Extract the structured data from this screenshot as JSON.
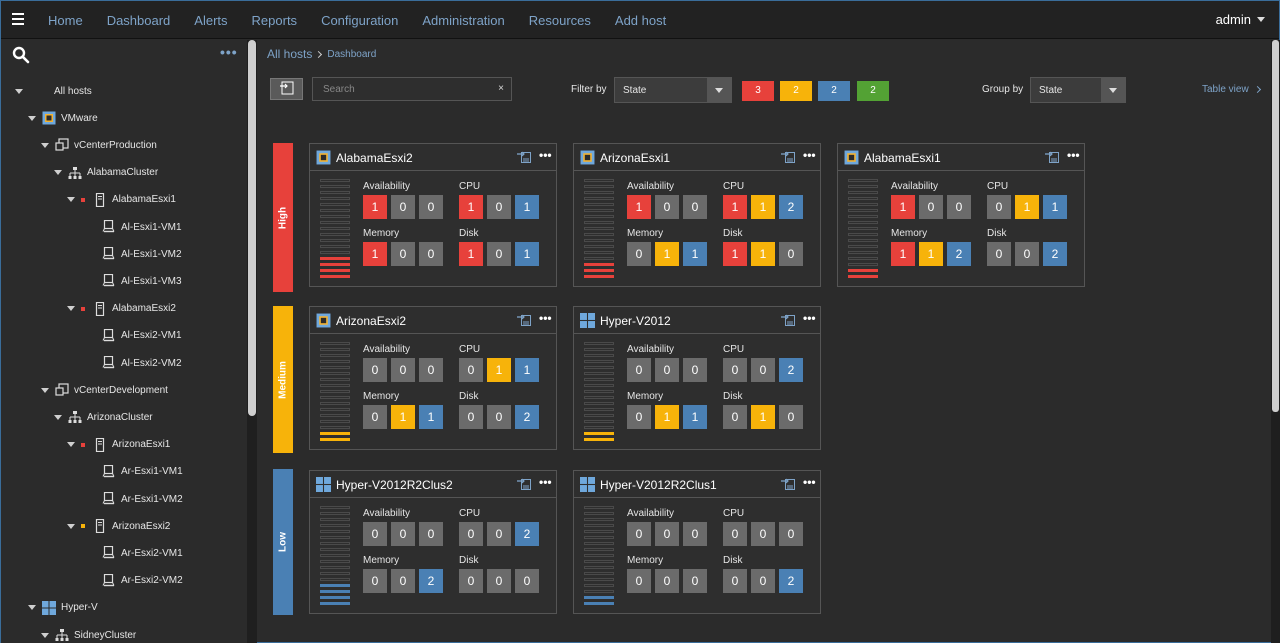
{
  "colors": {
    "red": "#e7413b",
    "amber": "#f7b30a",
    "blue": "#4a80b4",
    "green": "#53a234",
    "gray": "#6b6b6b"
  },
  "nav": {
    "items": [
      "Home",
      "Dashboard",
      "Alerts",
      "Reports",
      "Configuration",
      "Administration",
      "Resources",
      "Add host"
    ],
    "user": "admin"
  },
  "sidebar": {
    "more": "•••",
    "tree": [
      {
        "label": "All hosts",
        "level": 0,
        "icon": "none",
        "expanded": true
      },
      {
        "label": "VMware",
        "level": 1,
        "icon": "vmware-icon",
        "expanded": true
      },
      {
        "label": "vCenterProduction",
        "level": 2,
        "icon": "vcenter-icon",
        "expanded": true
      },
      {
        "label": "AlabamaCluster",
        "level": 3,
        "icon": "cluster-icon",
        "expanded": true
      },
      {
        "label": "AlabamaEsxi1",
        "level": 4,
        "icon": "server-icon",
        "expanded": true,
        "status": "red"
      },
      {
        "label": "Al-Esxi1-VM1",
        "level": 5,
        "icon": "vm-icon"
      },
      {
        "label": "Al-Esxi1-VM2",
        "level": 5,
        "icon": "vm-icon"
      },
      {
        "label": "Al-Esxi1-VM3",
        "level": 5,
        "icon": "vm-icon"
      },
      {
        "label": "AlabamaEsxi2",
        "level": 4,
        "icon": "server-icon",
        "expanded": true,
        "status": "red"
      },
      {
        "label": "Al-Esxi2-VM1",
        "level": 5,
        "icon": "vm-icon"
      },
      {
        "label": "Al-Esxi2-VM2",
        "level": 5,
        "icon": "vm-icon"
      },
      {
        "label": "vCenterDevelopment",
        "level": 2,
        "icon": "vcenter-icon",
        "expanded": true
      },
      {
        "label": "ArizonaCluster",
        "level": 3,
        "icon": "cluster-icon",
        "expanded": true
      },
      {
        "label": "ArizonaEsxi1",
        "level": 4,
        "icon": "server-icon",
        "expanded": true,
        "status": "red"
      },
      {
        "label": "Ar-Esxi1-VM1",
        "level": 5,
        "icon": "vm-icon"
      },
      {
        "label": "Ar-Esxi1-VM2",
        "level": 5,
        "icon": "vm-icon"
      },
      {
        "label": "ArizonaEsxi2",
        "level": 4,
        "icon": "server-icon",
        "expanded": true,
        "status": "amber"
      },
      {
        "label": "Ar-Esxi2-VM1",
        "level": 5,
        "icon": "vm-icon"
      },
      {
        "label": "Ar-Esxi2-VM2",
        "level": 5,
        "icon": "vm-icon"
      },
      {
        "label": "Hyper-V",
        "level": 1,
        "icon": "windows-icon",
        "expanded": true
      },
      {
        "label": "SidneyCluster",
        "level": 2,
        "icon": "cluster-icon",
        "expanded": true
      }
    ]
  },
  "breadcrumb": {
    "root": "All hosts",
    "current": "Dashboard"
  },
  "toolbar": {
    "search_placeholder": "Search",
    "clear": "×",
    "filter_label": "Filter by",
    "filter_value": "State",
    "filter_counts": [
      {
        "count": "3",
        "color": "red"
      },
      {
        "count": "2",
        "color": "amber"
      },
      {
        "count": "2",
        "color": "blue"
      },
      {
        "count": "2",
        "color": "green"
      }
    ],
    "group_label": "Group by",
    "group_value": "State",
    "table_view": "Table view"
  },
  "metric_labels": [
    "Availability",
    "CPU",
    "Memory",
    "Disk"
  ],
  "card_more": "•••",
  "groups": [
    {
      "label": "High",
      "color": "red",
      "cards": [
        {
          "name": "AlabamaEsxi2",
          "icon": "vmware-icon",
          "level": 4,
          "metrics": {
            "Availability": [
              "1",
              "0",
              "0"
            ],
            "CPU": [
              "1",
              "0",
              "1"
            ],
            "Memory": [
              "1",
              "0",
              "0"
            ],
            "Disk": [
              "1",
              "0",
              "1"
            ]
          },
          "colors": {
            "Availability": [
              "red",
              "gray",
              "gray"
            ],
            "CPU": [
              "red",
              "gray",
              "blue"
            ],
            "Memory": [
              "red",
              "gray",
              "gray"
            ],
            "Disk": [
              "red",
              "gray",
              "blue"
            ]
          }
        },
        {
          "name": "ArizonaEsxi1",
          "icon": "vmware-icon",
          "level": 3,
          "metrics": {
            "Availability": [
              "1",
              "0",
              "0"
            ],
            "CPU": [
              "1",
              "1",
              "2"
            ],
            "Memory": [
              "0",
              "1",
              "1"
            ],
            "Disk": [
              "1",
              "1",
              "0"
            ]
          },
          "colors": {
            "Availability": [
              "red",
              "gray",
              "gray"
            ],
            "CPU": [
              "red",
              "amber",
              "blue"
            ],
            "Memory": [
              "gray",
              "amber",
              "blue"
            ],
            "Disk": [
              "red",
              "amber",
              "gray"
            ]
          }
        },
        {
          "name": "AlabamaEsxi1",
          "icon": "vmware-icon",
          "level": 2,
          "metrics": {
            "Availability": [
              "1",
              "0",
              "0"
            ],
            "CPU": [
              "0",
              "1",
              "1"
            ],
            "Memory": [
              "1",
              "1",
              "2"
            ],
            "Disk": [
              "0",
              "0",
              "2"
            ]
          },
          "colors": {
            "Availability": [
              "red",
              "gray",
              "gray"
            ],
            "CPU": [
              "gray",
              "amber",
              "blue"
            ],
            "Memory": [
              "red",
              "amber",
              "blue"
            ],
            "Disk": [
              "gray",
              "gray",
              "blue"
            ]
          }
        }
      ]
    },
    {
      "label": "Medium",
      "color": "amber",
      "cards": [
        {
          "name": "ArizonaEsxi2",
          "icon": "vmware-icon",
          "level": 2,
          "metrics": {
            "Availability": [
              "0",
              "0",
              "0"
            ],
            "CPU": [
              "0",
              "1",
              "1"
            ],
            "Memory": [
              "0",
              "1",
              "1"
            ],
            "Disk": [
              "0",
              "0",
              "2"
            ]
          },
          "colors": {
            "Availability": [
              "gray",
              "gray",
              "gray"
            ],
            "CPU": [
              "gray",
              "amber",
              "blue"
            ],
            "Memory": [
              "gray",
              "amber",
              "blue"
            ],
            "Disk": [
              "gray",
              "gray",
              "blue"
            ]
          }
        },
        {
          "name": "Hyper-V2012",
          "icon": "windows-icon",
          "level": 2,
          "metrics": {
            "Availability": [
              "0",
              "0",
              "0"
            ],
            "CPU": [
              "0",
              "0",
              "2"
            ],
            "Memory": [
              "0",
              "1",
              "1"
            ],
            "Disk": [
              "0",
              "1",
              "0"
            ]
          },
          "colors": {
            "Availability": [
              "gray",
              "gray",
              "gray"
            ],
            "CPU": [
              "gray",
              "gray",
              "blue"
            ],
            "Memory": [
              "gray",
              "amber",
              "blue"
            ],
            "Disk": [
              "gray",
              "amber",
              "gray"
            ]
          }
        }
      ]
    },
    {
      "label": "Low",
      "color": "blue",
      "cards": [
        {
          "name": "Hyper-V2012R2Clus2",
          "icon": "windows-icon",
          "level": 4,
          "metrics": {
            "Availability": [
              "0",
              "0",
              "0"
            ],
            "CPU": [
              "0",
              "0",
              "2"
            ],
            "Memory": [
              "0",
              "0",
              "2"
            ],
            "Disk": [
              "0",
              "0",
              "0"
            ]
          },
          "colors": {
            "Availability": [
              "gray",
              "gray",
              "gray"
            ],
            "CPU": [
              "gray",
              "gray",
              "blue"
            ],
            "Memory": [
              "gray",
              "gray",
              "blue"
            ],
            "Disk": [
              "gray",
              "gray",
              "gray"
            ]
          }
        },
        {
          "name": "Hyper-V2012R2Clus1",
          "icon": "windows-icon",
          "level": 2,
          "metrics": {
            "Availability": [
              "0",
              "0",
              "0"
            ],
            "CPU": [
              "0",
              "0",
              "0"
            ],
            "Memory": [
              "0",
              "0",
              "0"
            ],
            "Disk": [
              "0",
              "0",
              "2"
            ]
          },
          "colors": {
            "Availability": [
              "gray",
              "gray",
              "gray"
            ],
            "CPU": [
              "gray",
              "gray",
              "gray"
            ],
            "Memory": [
              "gray",
              "gray",
              "gray"
            ],
            "Disk": [
              "gray",
              "gray",
              "blue"
            ]
          }
        }
      ]
    }
  ]
}
